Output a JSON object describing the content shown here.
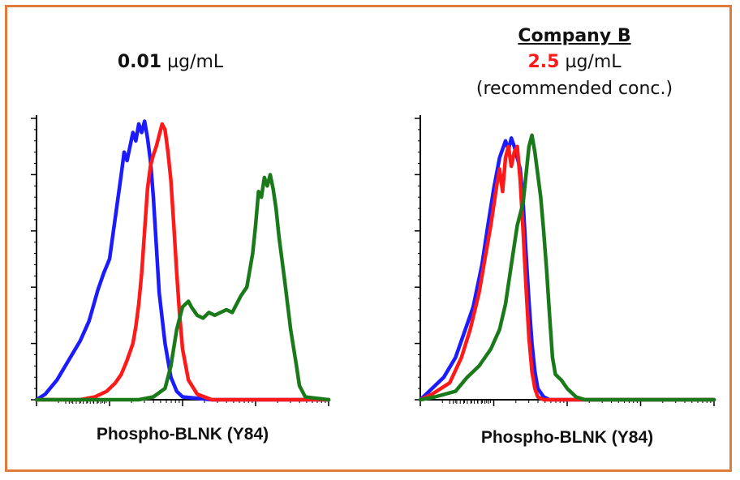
{
  "colors": {
    "border": "#e07b39",
    "blue": "#1b1bff",
    "red": "#ff1a1a",
    "green": "#1a7a1a",
    "accent_red": "#ff1a1a"
  },
  "panels": [
    {
      "title_number": "0.01",
      "title_unit": " µg/mL",
      "xlabel": "Phospho-BLNK (Y84)"
    },
    {
      "company": "Company B",
      "title_number": "2.5",
      "title_unit": " µg/mL",
      "note": "(recommended conc.)",
      "xlabel": "Phospho-BLNK (Y84)"
    }
  ],
  "chart_data": [
    {
      "type": "line",
      "title": "0.01 µg/mL",
      "xlabel": "Phospho-BLNK (Y84)",
      "ylabel": "",
      "xlim": [
        0,
        1
      ],
      "ylim": [
        0,
        1
      ],
      "grid": false,
      "x_axis": "log",
      "series": [
        {
          "color": "blue",
          "x": [
            0.0,
            0.03,
            0.07,
            0.11,
            0.15,
            0.18,
            0.21,
            0.23,
            0.25,
            0.27,
            0.29,
            0.3,
            0.31,
            0.32,
            0.33,
            0.34,
            0.35,
            0.36,
            0.37,
            0.38,
            0.39,
            0.4,
            0.41,
            0.42,
            0.44,
            0.46,
            0.48,
            0.5,
            0.6,
            1.0
          ],
          "y": [
            0.0,
            0.02,
            0.07,
            0.14,
            0.21,
            0.28,
            0.39,
            0.45,
            0.5,
            0.65,
            0.8,
            0.88,
            0.85,
            0.9,
            0.95,
            0.92,
            0.98,
            0.95,
            0.99,
            0.93,
            0.85,
            0.72,
            0.55,
            0.38,
            0.2,
            0.08,
            0.03,
            0.01,
            0.0,
            0.0
          ]
        },
        {
          "color": "red",
          "x": [
            0.0,
            0.15,
            0.2,
            0.24,
            0.27,
            0.29,
            0.31,
            0.33,
            0.34,
            0.35,
            0.36,
            0.37,
            0.38,
            0.39,
            0.4,
            0.41,
            0.42,
            0.43,
            0.44,
            0.45,
            0.46,
            0.47,
            0.48,
            0.49,
            0.5,
            0.52,
            0.55,
            0.6,
            1.0
          ],
          "y": [
            0.0,
            0.0,
            0.01,
            0.03,
            0.06,
            0.09,
            0.14,
            0.2,
            0.26,
            0.34,
            0.45,
            0.6,
            0.75,
            0.83,
            0.87,
            0.9,
            0.94,
            0.98,
            0.96,
            0.88,
            0.78,
            0.62,
            0.45,
            0.3,
            0.18,
            0.07,
            0.02,
            0.0,
            0.0
          ]
        },
        {
          "color": "green",
          "x": [
            0.0,
            0.35,
            0.4,
            0.44,
            0.46,
            0.48,
            0.5,
            0.52,
            0.53,
            0.55,
            0.57,
            0.59,
            0.61,
            0.63,
            0.65,
            0.67,
            0.69,
            0.7,
            0.72,
            0.74,
            0.75,
            0.76,
            0.77,
            0.78,
            0.79,
            0.8,
            0.81,
            0.82,
            0.83,
            0.85,
            0.87,
            0.89,
            0.9,
            0.92,
            1.0
          ],
          "y": [
            0.0,
            0.0,
            0.01,
            0.04,
            0.12,
            0.25,
            0.33,
            0.35,
            0.33,
            0.3,
            0.29,
            0.31,
            0.3,
            0.31,
            0.32,
            0.31,
            0.35,
            0.37,
            0.4,
            0.52,
            0.62,
            0.74,
            0.72,
            0.79,
            0.76,
            0.8,
            0.75,
            0.68,
            0.58,
            0.42,
            0.25,
            0.12,
            0.05,
            0.01,
            0.0
          ]
        }
      ]
    },
    {
      "type": "line",
      "title": "Company B 2.5 µg/mL (recommended conc.)",
      "xlabel": "Phospho-BLNK (Y84)",
      "ylabel": "",
      "xlim": [
        0,
        1
      ],
      "ylim": [
        0,
        1
      ],
      "grid": false,
      "x_axis": "log",
      "series": [
        {
          "color": "blue",
          "x": [
            0.0,
            0.04,
            0.08,
            0.12,
            0.15,
            0.18,
            0.21,
            0.23,
            0.25,
            0.27,
            0.29,
            0.3,
            0.31,
            0.32,
            0.33,
            0.34,
            0.35,
            0.36,
            0.37,
            0.38,
            0.39,
            0.4,
            0.42,
            0.44,
            0.46,
            0.5,
            1.0
          ],
          "y": [
            0.0,
            0.04,
            0.08,
            0.15,
            0.24,
            0.33,
            0.48,
            0.62,
            0.75,
            0.86,
            0.92,
            0.89,
            0.93,
            0.9,
            0.86,
            0.82,
            0.7,
            0.52,
            0.35,
            0.2,
            0.1,
            0.04,
            0.01,
            0.0,
            0.0,
            0.0,
            0.0
          ]
        },
        {
          "color": "red",
          "x": [
            0.0,
            0.04,
            0.1,
            0.14,
            0.17,
            0.2,
            0.22,
            0.24,
            0.26,
            0.27,
            0.28,
            0.29,
            0.3,
            0.31,
            0.32,
            0.33,
            0.34,
            0.35,
            0.36,
            0.37,
            0.38,
            0.39,
            0.4,
            0.42,
            0.45,
            0.5,
            1.0
          ],
          "y": [
            0.0,
            0.02,
            0.06,
            0.15,
            0.25,
            0.38,
            0.5,
            0.62,
            0.76,
            0.82,
            0.74,
            0.86,
            0.9,
            0.83,
            0.88,
            0.9,
            0.78,
            0.6,
            0.4,
            0.22,
            0.1,
            0.04,
            0.01,
            0.0,
            0.0,
            0.0,
            0.0
          ]
        },
        {
          "color": "green",
          "x": [
            0.0,
            0.05,
            0.12,
            0.16,
            0.2,
            0.24,
            0.27,
            0.29,
            0.31,
            0.33,
            0.34,
            0.35,
            0.36,
            0.37,
            0.38,
            0.39,
            0.4,
            0.41,
            0.42,
            0.43,
            0.44,
            0.45,
            0.46,
            0.47,
            0.48,
            0.5,
            0.53,
            0.56,
            0.62,
            1.0
          ],
          "y": [
            0.0,
            0.01,
            0.03,
            0.08,
            0.12,
            0.18,
            0.25,
            0.34,
            0.48,
            0.62,
            0.66,
            0.7,
            0.8,
            0.9,
            0.94,
            0.88,
            0.8,
            0.72,
            0.6,
            0.46,
            0.3,
            0.15,
            0.09,
            0.08,
            0.07,
            0.04,
            0.01,
            0.0,
            0.0,
            0.0
          ]
        }
      ]
    }
  ]
}
